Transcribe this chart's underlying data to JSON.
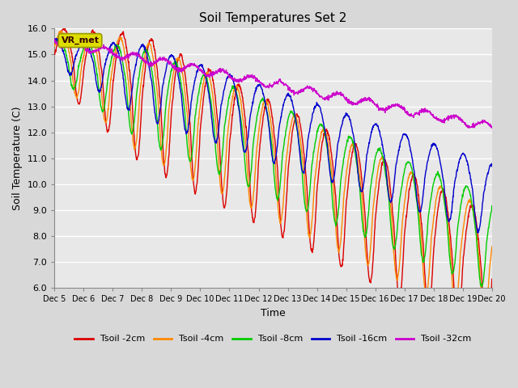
{
  "title": "Soil Temperatures Set 2",
  "xlabel": "Time",
  "ylabel": "Soil Temperature (C)",
  "ylim": [
    6.0,
    16.0
  ],
  "yticks": [
    6.0,
    7.0,
    8.0,
    9.0,
    10.0,
    11.0,
    12.0,
    13.0,
    14.0,
    15.0,
    16.0
  ],
  "xtick_labels": [
    "Dec 5",
    "Dec 6",
    "Dec 7",
    "Dec 8",
    "Dec 9",
    "Dec 10",
    "Dec 11",
    "Dec 12",
    "Dec 13",
    "Dec 14",
    "Dec 15",
    "Dec 16",
    "Dec 17",
    "Dec 18",
    "Dec 19",
    "Dec 20"
  ],
  "series": {
    "Tsoil -2cm": {
      "color": "#dd0000"
    },
    "Tsoil -4cm": {
      "color": "#ff8800"
    },
    "Tsoil -8cm": {
      "color": "#00cc00"
    },
    "Tsoil -16cm": {
      "color": "#0000cc"
    },
    "Tsoil -32cm": {
      "color": "#cc00cc"
    }
  },
  "legend_box_color": "#dddd00",
  "legend_box_text": "VR_met",
  "background_color": "#e8e8e8",
  "grid_color": "#ffffff",
  "figsize": [
    6.4,
    4.8
  ],
  "dpi": 100
}
